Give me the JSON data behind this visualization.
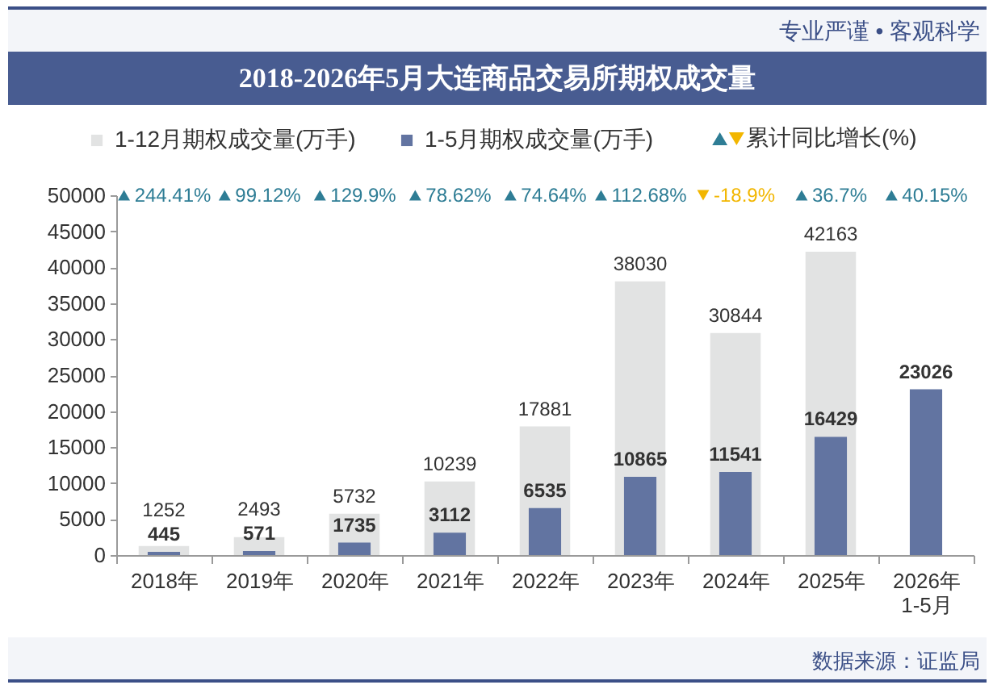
{
  "chart_data": [
    {
      "type": "bar",
      "title": "2018-2026年5月大连商品交易所期权成交量",
      "categories": [
        "2018年",
        "2019年",
        "2020年",
        "2021年",
        "2022年",
        "2023年",
        "2024年",
        "2025年",
        "2026年\n1-5月"
      ],
      "series": [
        {
          "name": "1-12月期权成交量(万手)",
          "color": "#e2e3e3",
          "values": [
            1252,
            2493,
            5732,
            10239,
            17881,
            38030,
            30844,
            42163,
            null
          ]
        },
        {
          "name": "1-5月期权成交量(万手)",
          "color": "#6274a1",
          "values": [
            445,
            571,
            1735,
            3112,
            6535,
            10865,
            11541,
            16429,
            23026
          ]
        }
      ],
      "ylim": [
        0,
        50000
      ],
      "yticks": [
        0,
        5000,
        10000,
        15000,
        20000,
        25000,
        30000,
        35000,
        40000,
        45000,
        50000
      ],
      "legend": "top",
      "data_labels": true,
      "annotations": [
        "专业严谨 • 客观科学",
        "数据来源：证监局"
      ]
    },
    {
      "type": "other",
      "series": [
        {
          "name": "累计同比增长(%)",
          "marker": "triangle",
          "values": [
            244.41,
            99.12,
            129.9,
            78.62,
            74.64,
            112.68,
            -18.9,
            36.7,
            40.15
          ],
          "value_labels": [
            "244.41%",
            "99.12%",
            "129.9%",
            "78.62%",
            "74.64%",
            "112.68%",
            "-18.9%",
            "36.7%",
            "40.15%"
          ],
          "colors": [
            "#2e7d95",
            "#2e7d95",
            "#2e7d95",
            "#2e7d95",
            "#2e7d95",
            "#2e7d95",
            "#f2b600",
            "#2e7d95",
            "#2e7d95"
          ]
        }
      ],
      "legend": "top"
    }
  ]
}
